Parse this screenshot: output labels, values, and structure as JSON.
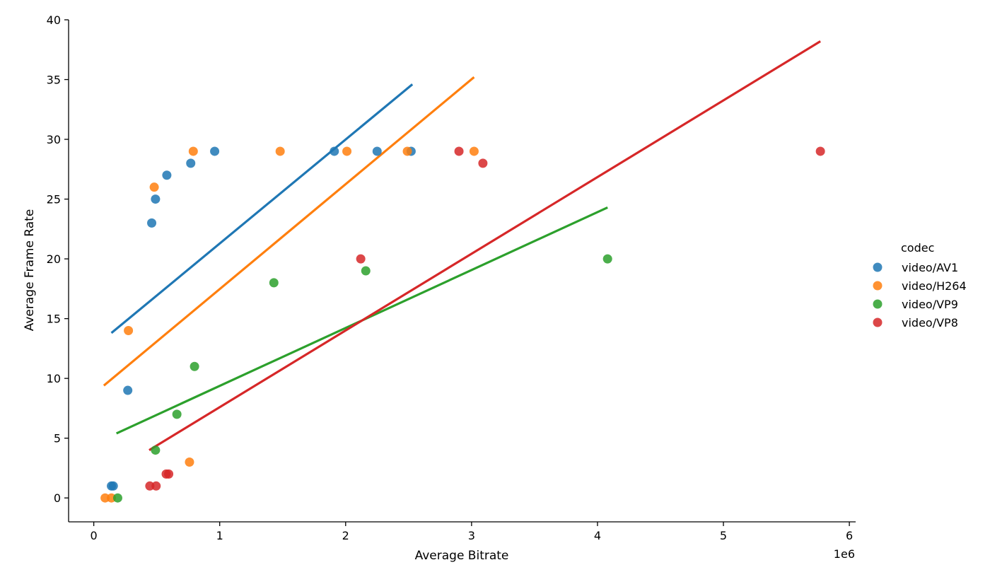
{
  "chart_data": {
    "type": "scatter",
    "title": "",
    "xlabel": "Average Bitrate",
    "ylabel": "Average Frame Rate",
    "x_offset_label": "1e6",
    "x_scale": 1000000,
    "xlim": [
      -200000,
      6050000
    ],
    "ylim": [
      -2,
      40
    ],
    "x_ticks": [
      0,
      1000000,
      2000000,
      3000000,
      4000000,
      5000000,
      6000000
    ],
    "x_tick_labels": [
      "0",
      "1",
      "2",
      "3",
      "4",
      "5",
      "6"
    ],
    "y_ticks": [
      0,
      5,
      10,
      15,
      20,
      25,
      30,
      35,
      40
    ],
    "y_tick_labels": [
      "0",
      "5",
      "10",
      "15",
      "20",
      "25",
      "30",
      "35",
      "40"
    ],
    "grid": false,
    "legend": {
      "title": "codec",
      "placement": "right"
    },
    "series": [
      {
        "name": "video/AV1",
        "color": "#1f77b4",
        "points": [
          [
            140000,
            1
          ],
          [
            155000,
            1
          ],
          [
            270000,
            9
          ],
          [
            460000,
            23
          ],
          [
            490000,
            25
          ],
          [
            580000,
            27
          ],
          [
            770000,
            28
          ],
          [
            960000,
            29
          ],
          [
            1910000,
            29
          ],
          [
            2250000,
            29
          ],
          [
            2520000,
            29
          ]
        ],
        "trend": [
          [
            140000,
            13.8
          ],
          [
            2530000,
            34.6
          ]
        ]
      },
      {
        "name": "video/H264",
        "color": "#ff7f0e",
        "points": [
          [
            90000,
            0
          ],
          [
            140000,
            0
          ],
          [
            275000,
            14
          ],
          [
            480000,
            26
          ],
          [
            760000,
            3
          ],
          [
            790000,
            29
          ],
          [
            1480000,
            29
          ],
          [
            2010000,
            29
          ],
          [
            2490000,
            29
          ],
          [
            3020000,
            29
          ]
        ],
        "trend": [
          [
            80000,
            9.4
          ],
          [
            3020000,
            35.2
          ]
        ]
      },
      {
        "name": "video/VP9",
        "color": "#2ca02c",
        "points": [
          [
            190000,
            0
          ],
          [
            490000,
            4
          ],
          [
            660000,
            7
          ],
          [
            800000,
            11
          ],
          [
            1430000,
            18
          ],
          [
            2160000,
            19
          ],
          [
            4080000,
            20
          ]
        ],
        "trend": [
          [
            180000,
            5.4
          ],
          [
            4080000,
            24.3
          ]
        ]
      },
      {
        "name": "video/VP8",
        "color": "#d62728",
        "points": [
          [
            445000,
            1
          ],
          [
            495000,
            1
          ],
          [
            575000,
            2
          ],
          [
            595000,
            2
          ],
          [
            2120000,
            20
          ],
          [
            2900000,
            29
          ],
          [
            3090000,
            28
          ],
          [
            5770000,
            29
          ]
        ],
        "trend": [
          [
            440000,
            4.0
          ],
          [
            5770000,
            38.2
          ]
        ]
      }
    ]
  }
}
